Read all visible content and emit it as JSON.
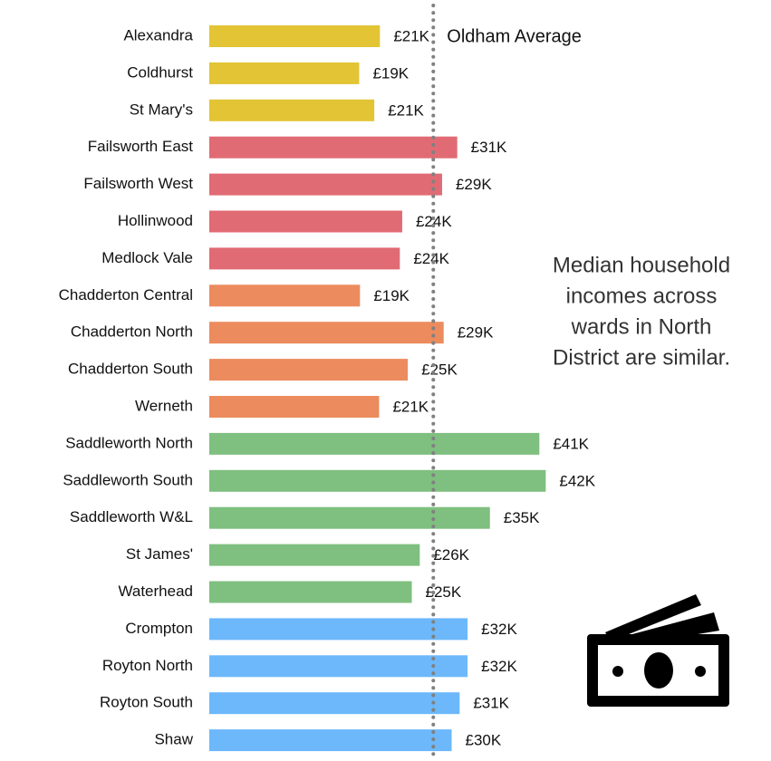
{
  "chart_data": {
    "type": "barh",
    "categories": [
      "Alexandra",
      "Coldhurst",
      "St Mary's",
      "Failsworth East",
      "Failsworth West",
      "Hollinwood",
      "Medlock Vale",
      "Chadderton Central",
      "Chadderton North",
      "Chadderton South",
      "Werneth",
      "Saddleworth North",
      "Saddleworth South",
      "Saddleworth W&L",
      "St James'",
      "Waterhead",
      "Crompton",
      "Royton North",
      "Royton South",
      "Shaw"
    ],
    "values": [
      21.4,
      18.8,
      20.7,
      31.1,
      29.2,
      24.2,
      23.9,
      18.9,
      29.4,
      24.9,
      21.3,
      41.4,
      42.2,
      35.2,
      26.4,
      25.4,
      32.4,
      32.4,
      31.4,
      30.4
    ],
    "value_labels": [
      "£21K",
      "£19K",
      "£21K",
      "£31K",
      "£29K",
      "£24K",
      "£24K",
      "£19K",
      "£29K",
      "£25K",
      "£21K",
      "£41K",
      "£42K",
      "£35K",
      "£26K",
      "£25K",
      "£32K",
      "£32K",
      "£31K",
      "£30K"
    ],
    "colors": [
      "#e2c434",
      "#e2c434",
      "#e2c434",
      "#e06b74",
      "#e06b74",
      "#e06b74",
      "#e06b74",
      "#ec8b5e",
      "#ec8b5e",
      "#ec8b5e",
      "#ec8b5e",
      "#7fbf7f",
      "#7fbf7f",
      "#7fbf7f",
      "#7fbf7f",
      "#7fbf7f",
      "#6cb8fb",
      "#6cb8fb",
      "#6cb8fb",
      "#6cb8fb"
    ],
    "xlim": [
      0,
      50
    ],
    "average": {
      "label": "Oldham Average",
      "value": 28.1,
      "color": "#808080"
    },
    "annotation": [
      "Median household",
      "incomes across",
      "wards in North",
      "District are similar."
    ]
  }
}
